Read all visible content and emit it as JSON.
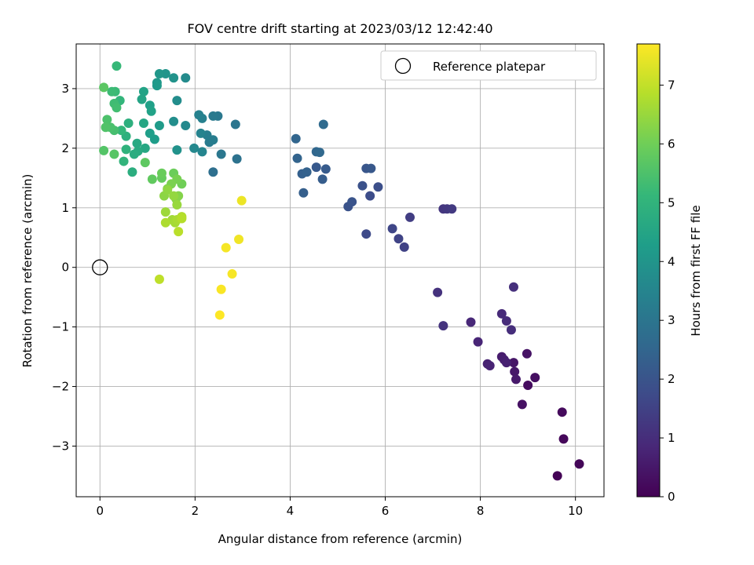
{
  "chart_data": {
    "type": "scatter",
    "title": "FOV centre drift starting at 2023/03/12 12:42:40",
    "xlabel": "Angular distance from reference (arcmin)",
    "ylabel": "Rotation from reference (arcmin)",
    "xlim": [
      -0.5,
      10.6
    ],
    "ylim": [
      -3.85,
      3.75
    ],
    "xticks": [
      "0",
      "2",
      "4",
      "6",
      "8",
      "10"
    ],
    "yticks": [
      "−3",
      "−2",
      "−1",
      "0",
      "1",
      "2",
      "3"
    ],
    "grid": true,
    "legend": {
      "placement": "top-right",
      "entries": [
        "Reference platepar"
      ]
    },
    "reference_point": {
      "x": 0,
      "y": 0,
      "marker": "open-circle",
      "color": "#000000"
    },
    "colorbar": {
      "label": "Hours from first FF file",
      "min": 0,
      "max": 7.7,
      "ticks": [
        "0",
        "1",
        "2",
        "3",
        "4",
        "5",
        "6",
        "7"
      ],
      "colormap": "viridis",
      "stops": [
        "#440154",
        "#482878",
        "#3e4a89",
        "#31688e",
        "#26828e",
        "#1f9e89",
        "#35b779",
        "#6ece58",
        "#b5de2b",
        "#fde725"
      ]
    },
    "series": [
      {
        "points": [
          [
            9.62,
            -3.5,
            0.05
          ],
          [
            10.08,
            -3.3,
            0.1
          ],
          [
            9.75,
            -2.88,
            0.15
          ],
          [
            9.72,
            -2.43,
            0.2
          ],
          [
            9.0,
            -1.98,
            0.25
          ],
          [
            9.15,
            -1.85,
            0.3
          ],
          [
            8.88,
            -2.3,
            0.35
          ],
          [
            8.98,
            -1.45,
            0.4
          ],
          [
            8.7,
            -1.6,
            0.45
          ],
          [
            8.72,
            -1.75,
            0.5
          ],
          [
            8.75,
            -1.88,
            0.55
          ],
          [
            8.45,
            -1.5,
            0.6
          ],
          [
            8.5,
            -1.55,
            0.65
          ],
          [
            8.55,
            -1.6,
            0.7
          ],
          [
            8.15,
            -1.62,
            0.72
          ],
          [
            8.2,
            -1.65,
            0.75
          ],
          [
            7.95,
            -1.25,
            0.8
          ],
          [
            7.8,
            -0.92,
            0.85
          ],
          [
            8.45,
            -0.78,
            0.9
          ],
          [
            8.55,
            -0.9,
            0.95
          ],
          [
            8.65,
            -1.05,
            1.0
          ],
          [
            8.7,
            -0.33,
            1.05
          ],
          [
            7.1,
            -0.42,
            1.1
          ],
          [
            7.22,
            -0.98,
            1.15
          ],
          [
            7.22,
            0.98,
            1.2
          ],
          [
            7.3,
            0.98,
            1.25
          ],
          [
            7.4,
            0.98,
            1.3
          ],
          [
            6.52,
            0.84,
            1.4
          ],
          [
            6.4,
            0.34,
            1.5
          ],
          [
            6.28,
            0.48,
            1.55
          ],
          [
            6.15,
            0.65,
            1.6
          ],
          [
            5.6,
            0.56,
            1.7
          ],
          [
            5.68,
            1.2,
            1.8
          ],
          [
            5.85,
            1.35,
            1.85
          ],
          [
            5.52,
            1.37,
            1.9
          ],
          [
            5.22,
            1.02,
            1.95
          ],
          [
            5.3,
            1.1,
            2.0
          ],
          [
            5.6,
            1.66,
            2.05
          ],
          [
            5.7,
            1.66,
            2.1
          ],
          [
            4.55,
            1.68,
            2.15
          ],
          [
            4.75,
            1.65,
            2.2
          ],
          [
            4.68,
            1.48,
            2.25
          ],
          [
            4.28,
            1.25,
            2.3
          ],
          [
            4.25,
            1.57,
            2.35
          ],
          [
            4.35,
            1.6,
            2.4
          ],
          [
            4.15,
            1.83,
            2.45
          ],
          [
            4.12,
            2.16,
            2.5
          ],
          [
            4.55,
            1.94,
            2.55
          ],
          [
            4.62,
            1.93,
            2.6
          ],
          [
            4.7,
            2.4,
            2.65
          ],
          [
            2.38,
            1.6,
            2.8
          ],
          [
            2.88,
            1.82,
            2.9
          ],
          [
            2.85,
            2.4,
            3.0
          ],
          [
            2.55,
            1.9,
            3.05
          ],
          [
            2.48,
            2.54,
            3.1
          ],
          [
            2.38,
            2.54,
            3.15
          ],
          [
            2.3,
            2.1,
            3.2
          ],
          [
            2.38,
            2.14,
            3.25
          ],
          [
            2.25,
            2.22,
            3.3
          ],
          [
            2.15,
            2.5,
            3.35
          ],
          [
            2.08,
            2.56,
            3.4
          ],
          [
            2.12,
            2.25,
            3.45
          ],
          [
            2.15,
            1.94,
            3.5
          ],
          [
            1.98,
            2.0,
            3.6
          ],
          [
            1.8,
            2.38,
            3.65
          ],
          [
            1.8,
            3.18,
            3.7
          ],
          [
            1.62,
            2.8,
            3.75
          ],
          [
            1.55,
            2.45,
            3.8
          ],
          [
            1.62,
            1.97,
            3.9
          ],
          [
            1.55,
            3.18,
            3.95
          ],
          [
            1.38,
            3.25,
            4.0
          ],
          [
            1.25,
            3.25,
            4.05
          ],
          [
            1.2,
            3.1,
            4.1
          ],
          [
            1.2,
            3.05,
            4.15
          ],
          [
            1.25,
            2.38,
            4.2
          ],
          [
            1.15,
            2.15,
            4.25
          ],
          [
            1.05,
            2.25,
            4.3
          ],
          [
            1.05,
            2.72,
            4.35
          ],
          [
            1.08,
            2.62,
            4.4
          ],
          [
            0.92,
            2.95,
            4.45
          ],
          [
            0.88,
            2.82,
            4.5
          ],
          [
            0.92,
            2.42,
            4.55
          ],
          [
            0.95,
            2.0,
            4.6
          ],
          [
            0.78,
            2.08,
            4.65
          ],
          [
            0.8,
            1.95,
            4.7
          ],
          [
            0.72,
            1.9,
            4.75
          ],
          [
            0.68,
            1.6,
            4.8
          ],
          [
            0.6,
            2.42,
            4.85
          ],
          [
            0.55,
            2.2,
            4.9
          ],
          [
            0.55,
            1.98,
            4.95
          ],
          [
            0.5,
            1.78,
            5.0
          ],
          [
            0.42,
            2.8,
            5.05
          ],
          [
            0.45,
            2.3,
            5.1
          ],
          [
            0.35,
            3.38,
            5.15
          ],
          [
            0.32,
            2.95,
            5.2
          ],
          [
            0.25,
            2.95,
            5.25
          ],
          [
            0.3,
            2.75,
            5.3
          ],
          [
            0.35,
            2.68,
            5.35
          ],
          [
            0.3,
            2.3,
            5.4
          ],
          [
            0.22,
            2.35,
            5.45
          ],
          [
            0.15,
            2.48,
            5.5
          ],
          [
            0.12,
            2.35,
            5.55
          ],
          [
            0.08,
            1.96,
            5.6
          ],
          [
            0.3,
            1.9,
            5.65
          ],
          [
            0.08,
            3.02,
            5.7
          ],
          [
            0.95,
            1.76,
            5.75
          ],
          [
            1.1,
            1.48,
            5.8
          ],
          [
            1.3,
            1.5,
            5.85
          ],
          [
            1.3,
            1.58,
            5.9
          ],
          [
            1.55,
            1.58,
            5.95
          ],
          [
            1.72,
            1.4,
            6.0
          ],
          [
            1.62,
            1.48,
            6.1
          ],
          [
            1.5,
            1.4,
            6.15
          ],
          [
            1.42,
            1.32,
            6.2
          ],
          [
            1.65,
            1.2,
            6.25
          ],
          [
            1.6,
            1.15,
            6.3
          ],
          [
            1.35,
            1.2,
            6.35
          ],
          [
            1.42,
            1.3,
            6.4
          ],
          [
            1.55,
            1.2,
            6.45
          ],
          [
            1.62,
            1.05,
            6.5
          ],
          [
            1.38,
            0.93,
            6.55
          ],
          [
            1.52,
            0.8,
            6.6
          ],
          [
            1.58,
            0.75,
            6.65
          ],
          [
            1.62,
            0.8,
            6.7
          ],
          [
            1.38,
            0.75,
            6.75
          ],
          [
            1.72,
            0.85,
            6.8
          ],
          [
            1.72,
            0.82,
            6.85
          ],
          [
            1.65,
            0.6,
            6.9
          ],
          [
            1.25,
            -0.2,
            6.95
          ],
          [
            2.98,
            1.12,
            7.5
          ],
          [
            2.92,
            0.47,
            7.55
          ],
          [
            2.65,
            0.33,
            7.6
          ],
          [
            2.78,
            -0.11,
            7.62
          ],
          [
            2.55,
            -0.37,
            7.65
          ],
          [
            2.52,
            -0.8,
            7.7
          ]
        ]
      }
    ]
  }
}
